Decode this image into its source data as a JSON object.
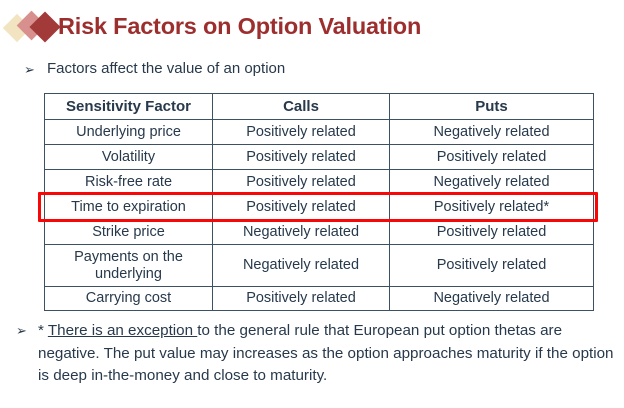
{
  "title": {
    "text": "Risk Factors on Option Valuation",
    "color": "#9D2E2E"
  },
  "logo": {
    "diamond_colors": {
      "back": "#F3E4C1",
      "middle": "#D8908E",
      "front": "#A23A3A"
    }
  },
  "bullet": {
    "marker": "➢",
    "text": "Factors affect the value of an option"
  },
  "table": {
    "headers": {
      "factor": "Sensitivity Factor",
      "calls": "Calls",
      "puts": "Puts"
    },
    "rows": [
      {
        "factor": "Underlying price",
        "calls": "Positively related",
        "puts": "Negatively related"
      },
      {
        "factor": "Volatility",
        "calls": "Positively related",
        "puts": "Positively related"
      },
      {
        "factor": "Risk-free rate",
        "calls": "Positively related",
        "puts": "Negatively related"
      },
      {
        "factor": "Time to expiration",
        "calls": "Positively related",
        "puts": "Positively related*",
        "highlighted": true
      },
      {
        "factor": "Strike price",
        "calls": "Negatively related",
        "puts": "Positively related"
      },
      {
        "factor": "Payments on the underlying",
        "calls": "Negatively related",
        "puts": "Positively related"
      },
      {
        "factor": "Carrying cost",
        "calls": "Positively related",
        "puts": "Negatively related"
      }
    ],
    "highlight_color": "#F90606",
    "text_color": "#27394B",
    "border_color": "#3D5163"
  },
  "footnote": {
    "marker": "➢",
    "star": "* ",
    "underlined": "There is an exception ",
    "rest": "to the general rule that European put option thetas are negative. The put value may increases as the option approaches maturity if the option is deep in-the-money and close to maturity."
  }
}
